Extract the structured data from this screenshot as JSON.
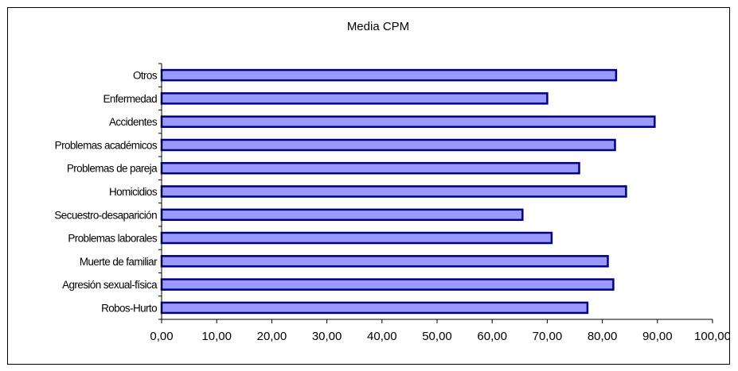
{
  "chart_data": {
    "type": "bar",
    "orientation": "horizontal",
    "title": "Media CPM",
    "xlabel": "",
    "ylabel": "",
    "categories": [
      "Otros",
      "Enfermedad",
      "Accidentes",
      "Problemas académicos",
      "Problemas de pareja",
      "Homicidios",
      "Secuestro-desaparición",
      "Problemas laborales",
      "Muerte de familiar",
      "Agresión sexual-física",
      "Robos-Hurto"
    ],
    "values": [
      82.5,
      70.0,
      89.5,
      82.3,
      75.8,
      84.3,
      65.5,
      70.8,
      81.0,
      82.0,
      77.3
    ],
    "xlim": [
      0,
      100
    ],
    "xticks": [
      "0,00",
      "10,00",
      "20,00",
      "30,00",
      "40,00",
      "50,00",
      "60,00",
      "70,00",
      "80,00",
      "90,00",
      "100,00"
    ],
    "grid": false,
    "legend": "none",
    "colors": {
      "bar_fill": "#9999ff",
      "bar_edge": "#000080",
      "axis": "#000000"
    }
  }
}
